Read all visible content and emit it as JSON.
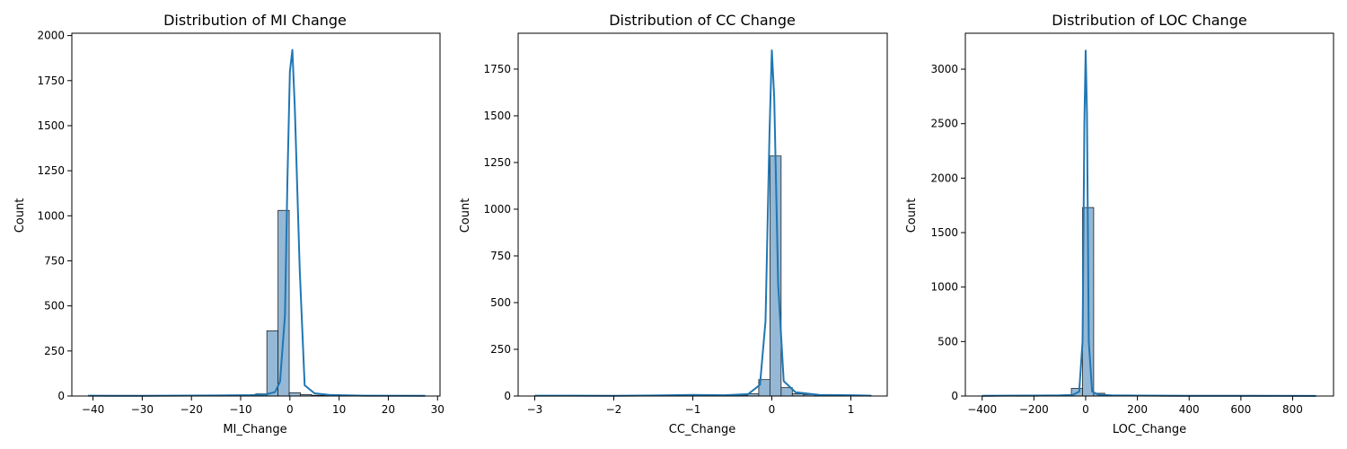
{
  "chart_data": [
    {
      "type": "histogram",
      "title": "Distribution of MI Change",
      "xlabel": "MI_Change",
      "ylabel": "Count",
      "xlim": [
        -44.3,
        30.5
      ],
      "ylim": [
        0,
        2013
      ],
      "xticks": [
        -40,
        -30,
        -20,
        -10,
        0,
        10,
        20,
        30
      ],
      "xtick_labels": [
        "−40",
        "−30",
        "−20",
        "−10",
        "0",
        "10",
        "20",
        "30"
      ],
      "yticks": [
        0,
        250,
        500,
        750,
        1000,
        1250,
        1500,
        1750,
        2000
      ],
      "ytick_labels": [
        "0",
        "250",
        "500",
        "750",
        "1000",
        "1250",
        "1500",
        "1750",
        "2000"
      ],
      "bins": {
        "start": -41.0,
        "width": 2.27,
        "counts": [
          1,
          0,
          0,
          0,
          0,
          0,
          0,
          0,
          0,
          0,
          1,
          1,
          2,
          3,
          5,
          12,
          362,
          1030,
          18,
          8,
          4,
          3,
          2,
          1,
          1,
          1,
          1,
          1,
          0,
          1
        ]
      },
      "kde": {
        "x": [
          -41,
          -30,
          -15,
          -8,
          -5,
          -3,
          -2,
          -1,
          -0.5,
          0,
          0.5,
          1,
          2,
          3,
          5,
          8,
          15,
          27.5
        ],
        "y": [
          2,
          1,
          3,
          5,
          8,
          22,
          80,
          450,
          1200,
          1800,
          1920,
          1600,
          700,
          60,
          15,
          6,
          2,
          1
        ]
      },
      "color": "#1f77b4",
      "bar_fill": "#94b8d6"
    },
    {
      "type": "histogram",
      "title": "Distribution of CC Change",
      "xlabel": "CC_Change",
      "ylabel": "Count",
      "xlim": [
        -3.21,
        1.46
      ],
      "ylim": [
        0,
        1942
      ],
      "xticks": [
        -3,
        -2,
        -1,
        0,
        1
      ],
      "xtick_labels": [
        "−3",
        "−2",
        "−1",
        "0",
        "1"
      ],
      "yticks": [
        0,
        250,
        500,
        750,
        1000,
        1250,
        1500,
        1750
      ],
      "ytick_labels": [
        "0",
        "250",
        "500",
        "750",
        "1000",
        "1250",
        "1500",
        "1750"
      ],
      "bins": {
        "start": -3.0,
        "width": 0.1417,
        "counts": [
          1,
          0,
          0,
          0,
          0,
          0,
          0,
          0,
          0,
          0,
          0,
          0,
          1,
          2,
          3,
          1,
          2,
          3,
          5,
          12,
          88,
          1285,
          45,
          12,
          8,
          5,
          3,
          2,
          2,
          1
        ]
      },
      "kde": {
        "x": [
          -3,
          -2,
          -1.5,
          -1,
          -0.6,
          -0.3,
          -0.15,
          -0.08,
          -0.03,
          0,
          0.03,
          0.08,
          0.15,
          0.3,
          0.6,
          1,
          1.26
        ],
        "y": [
          2,
          1,
          3,
          6,
          4,
          10,
          60,
          400,
          1400,
          1850,
          1600,
          600,
          80,
          20,
          6,
          4,
          2
        ]
      },
      "color": "#1f77b4",
      "bar_fill": "#94b8d6"
    },
    {
      "type": "histogram",
      "title": "Distribution of LOC Change",
      "xlabel": "LOC_Change",
      "ylabel": "Count",
      "xlim": [
        -465,
        958
      ],
      "ylim": [
        0,
        3330
      ],
      "xticks": [
        -400,
        -200,
        0,
        200,
        400,
        600,
        800
      ],
      "xtick_labels": [
        "−400",
        "−200",
        "0",
        "200",
        "400",
        "600",
        "800"
      ],
      "yticks": [
        0,
        500,
        1000,
        1500,
        2000,
        2500,
        3000
      ],
      "ytick_labels": [
        "0",
        "500",
        "1000",
        "1500",
        "2000",
        "2500",
        "3000"
      ],
      "bins": {
        "start": -400,
        "width": 43.1,
        "counts": [
          1,
          0,
          0,
          1,
          1,
          2,
          2,
          5,
          70,
          1730,
          25,
          8,
          4,
          3,
          2,
          2,
          1,
          1,
          1,
          1,
          1,
          1,
          1,
          1,
          1,
          1,
          0,
          0,
          1,
          1
        ]
      },
      "kde": {
        "x": [
          -400,
          -200,
          -100,
          -50,
          -25,
          -12,
          -5,
          0,
          5,
          12,
          25,
          50,
          100,
          200,
          400,
          600,
          890
        ],
        "y": [
          2,
          4,
          6,
          10,
          40,
          500,
          2500,
          3170,
          2600,
          500,
          40,
          12,
          6,
          4,
          2,
          2,
          1
        ]
      },
      "color": "#1f77b4",
      "bar_fill": "#94b8d6"
    }
  ]
}
